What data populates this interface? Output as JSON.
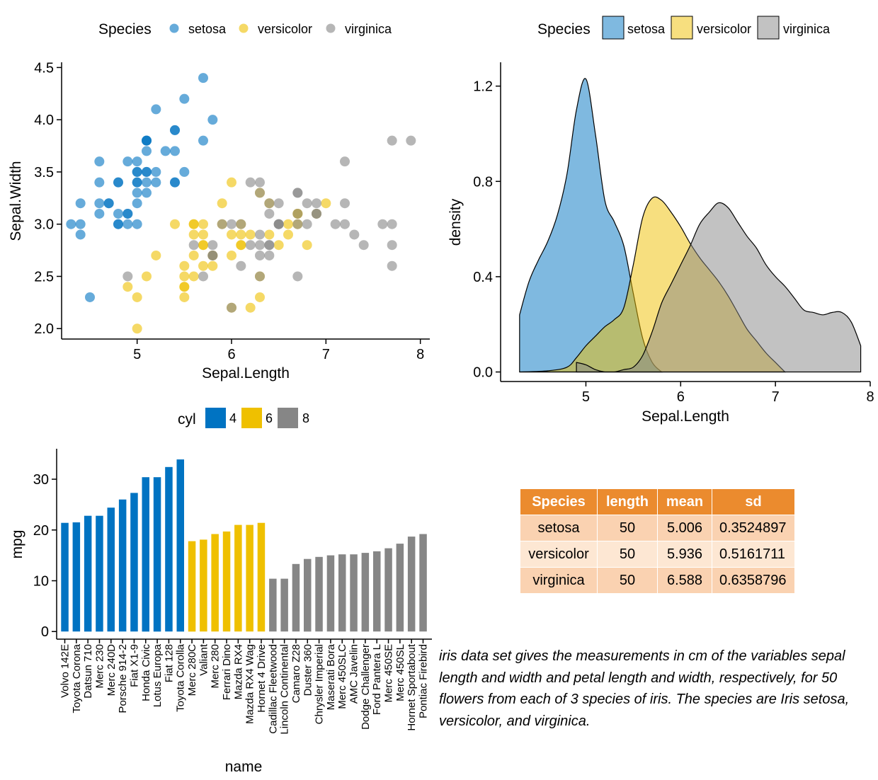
{
  "colors": {
    "setosa": "#0073C2",
    "versicolor": "#EFC000",
    "virginica": "#868686",
    "cyl4": "#0073C2",
    "cyl6": "#EFC000",
    "cyl8": "#868686",
    "table_header": "#EB8B2E",
    "table_row_odd": "#FAD2B1",
    "table_row_even": "#FDE7D3"
  },
  "chart_data": [
    {
      "type": "scatter",
      "xlabel": "Sepal.Length",
      "ylabel": "Sepal.Width",
      "xlim": [
        4.2,
        8.1
      ],
      "ylim": [
        1.9,
        4.55
      ],
      "xticks": [
        5,
        6,
        7,
        8
      ],
      "yticks": [
        2.0,
        2.5,
        3.0,
        3.5,
        4.0,
        4.5
      ],
      "ytick_labels": [
        "2.0",
        "2.5",
        "3.0",
        "3.5",
        "4.0",
        "4.5"
      ],
      "legend": {
        "title": "Species",
        "position": "top",
        "entries": [
          "setosa",
          "versicolor",
          "virginica"
        ]
      },
      "series": [
        {
          "name": "setosa",
          "points": [
            [
              5.1,
              3.5
            ],
            [
              4.9,
              3.0
            ],
            [
              4.7,
              3.2
            ],
            [
              4.6,
              3.1
            ],
            [
              5.0,
              3.6
            ],
            [
              5.4,
              3.9
            ],
            [
              4.6,
              3.4
            ],
            [
              5.0,
              3.4
            ],
            [
              4.4,
              2.9
            ],
            [
              4.9,
              3.1
            ],
            [
              5.4,
              3.7
            ],
            [
              4.8,
              3.4
            ],
            [
              4.8,
              3.0
            ],
            [
              4.3,
              3.0
            ],
            [
              5.8,
              4.0
            ],
            [
              5.7,
              4.4
            ],
            [
              5.4,
              3.9
            ],
            [
              5.1,
              3.5
            ],
            [
              5.7,
              3.8
            ],
            [
              5.1,
              3.8
            ],
            [
              5.4,
              3.4
            ],
            [
              5.1,
              3.7
            ],
            [
              4.6,
              3.6
            ],
            [
              5.1,
              3.3
            ],
            [
              4.8,
              3.4
            ],
            [
              5.0,
              3.0
            ],
            [
              5.0,
              3.4
            ],
            [
              5.2,
              3.5
            ],
            [
              5.2,
              3.4
            ],
            [
              4.7,
              3.2
            ],
            [
              4.8,
              3.1
            ],
            [
              5.4,
              3.4
            ],
            [
              5.2,
              4.1
            ],
            [
              5.5,
              4.2
            ],
            [
              4.9,
              3.1
            ],
            [
              5.0,
              3.2
            ],
            [
              5.5,
              3.5
            ],
            [
              4.9,
              3.6
            ],
            [
              4.4,
              3.0
            ],
            [
              5.1,
              3.4
            ],
            [
              5.0,
              3.5
            ],
            [
              4.5,
              2.3
            ],
            [
              4.4,
              3.2
            ],
            [
              5.0,
              3.5
            ],
            [
              5.1,
              3.8
            ],
            [
              4.8,
              3.0
            ],
            [
              5.1,
              3.8
            ],
            [
              4.6,
              3.2
            ],
            [
              5.3,
              3.7
            ],
            [
              5.0,
              3.3
            ]
          ]
        },
        {
          "name": "versicolor",
          "points": [
            [
              7.0,
              3.2
            ],
            [
              6.4,
              3.2
            ],
            [
              6.9,
              3.1
            ],
            [
              5.5,
              2.3
            ],
            [
              6.5,
              2.8
            ],
            [
              5.7,
              2.8
            ],
            [
              6.3,
              3.3
            ],
            [
              4.9,
              2.4
            ],
            [
              6.6,
              2.9
            ],
            [
              5.2,
              2.7
            ],
            [
              5.0,
              2.0
            ],
            [
              5.9,
              3.0
            ],
            [
              6.0,
              2.2
            ],
            [
              6.1,
              2.9
            ],
            [
              5.6,
              2.9
            ],
            [
              6.7,
              3.1
            ],
            [
              5.6,
              3.0
            ],
            [
              5.8,
              2.7
            ],
            [
              6.2,
              2.2
            ],
            [
              5.6,
              2.5
            ],
            [
              5.9,
              3.2
            ],
            [
              6.1,
              2.8
            ],
            [
              6.3,
              2.5
            ],
            [
              6.1,
              2.8
            ],
            [
              6.4,
              2.9
            ],
            [
              6.6,
              3.0
            ],
            [
              6.8,
              2.8
            ],
            [
              6.7,
              3.0
            ],
            [
              6.0,
              2.9
            ],
            [
              5.7,
              2.6
            ],
            [
              5.5,
              2.4
            ],
            [
              5.5,
              2.4
            ],
            [
              5.8,
              2.7
            ],
            [
              6.0,
              2.7
            ],
            [
              5.4,
              3.0
            ],
            [
              6.0,
              3.4
            ],
            [
              6.7,
              3.1
            ],
            [
              6.3,
              2.3
            ],
            [
              5.6,
              3.0
            ],
            [
              5.5,
              2.5
            ],
            [
              5.5,
              2.6
            ],
            [
              6.1,
              3.0
            ],
            [
              5.8,
              2.6
            ],
            [
              5.0,
              2.3
            ],
            [
              5.6,
              2.7
            ],
            [
              5.7,
              3.0
            ],
            [
              5.7,
              2.9
            ],
            [
              6.2,
              2.9
            ],
            [
              5.1,
              2.5
            ],
            [
              5.7,
              2.8
            ]
          ]
        },
        {
          "name": "virginica",
          "points": [
            [
              6.3,
              3.3
            ],
            [
              5.8,
              2.7
            ],
            [
              7.1,
              3.0
            ],
            [
              6.3,
              2.9
            ],
            [
              6.5,
              3.0
            ],
            [
              7.6,
              3.0
            ],
            [
              4.9,
              2.5
            ],
            [
              7.3,
              2.9
            ],
            [
              6.7,
              2.5
            ],
            [
              7.2,
              3.6
            ],
            [
              6.5,
              3.2
            ],
            [
              6.4,
              2.7
            ],
            [
              6.8,
              3.0
            ],
            [
              5.7,
              2.5
            ],
            [
              5.8,
              2.8
            ],
            [
              6.4,
              3.2
            ],
            [
              6.5,
              3.0
            ],
            [
              7.7,
              3.8
            ],
            [
              7.7,
              2.6
            ],
            [
              6.0,
              2.2
            ],
            [
              6.9,
              3.2
            ],
            [
              5.6,
              2.8
            ],
            [
              7.7,
              2.8
            ],
            [
              6.3,
              2.7
            ],
            [
              6.7,
              3.3
            ],
            [
              7.2,
              3.2
            ],
            [
              6.2,
              2.8
            ],
            [
              6.1,
              3.0
            ],
            [
              6.4,
              2.8
            ],
            [
              7.2,
              3.0
            ],
            [
              7.4,
              2.8
            ],
            [
              7.9,
              3.8
            ],
            [
              6.4,
              2.8
            ],
            [
              6.3,
              2.8
            ],
            [
              6.1,
              2.6
            ],
            [
              7.7,
              3.0
            ],
            [
              6.3,
              3.4
            ],
            [
              6.4,
              3.1
            ],
            [
              6.0,
              3.0
            ],
            [
              6.9,
              3.1
            ],
            [
              6.7,
              3.1
            ],
            [
              6.9,
              3.1
            ],
            [
              5.8,
              2.7
            ],
            [
              6.8,
              3.2
            ],
            [
              6.7,
              3.3
            ],
            [
              6.7,
              3.0
            ],
            [
              6.3,
              2.5
            ],
            [
              6.5,
              3.0
            ],
            [
              6.2,
              3.4
            ],
            [
              5.9,
              3.0
            ]
          ]
        }
      ]
    },
    {
      "type": "area",
      "xlabel": "Sepal.Length",
      "ylabel": "density",
      "xlim": [
        4.1,
        8.0
      ],
      "ylim": [
        -0.04,
        1.3
      ],
      "xticks": [
        5,
        6,
        7,
        8
      ],
      "yticks": [
        0.0,
        0.4,
        0.8,
        1.2
      ],
      "ytick_labels": [
        "0.0",
        "0.4",
        "0.8",
        "1.2"
      ],
      "legend": {
        "title": "Species",
        "position": "top",
        "entries": [
          "setosa",
          "versicolor",
          "virginica"
        ]
      },
      "series": [
        {
          "name": "setosa",
          "x": [
            4.3,
            4.4,
            4.5,
            4.6,
            4.7,
            4.8,
            4.9,
            5.0,
            5.1,
            5.2,
            5.3,
            5.4,
            5.5,
            5.6,
            5.7,
            5.8
          ],
          "y": [
            0.24,
            0.38,
            0.47,
            0.55,
            0.66,
            0.83,
            1.1,
            1.23,
            1.0,
            0.72,
            0.63,
            0.53,
            0.33,
            0.14,
            0.04,
            0.0
          ]
        },
        {
          "name": "versicolor",
          "x": [
            4.3,
            4.6,
            4.8,
            4.9,
            5.0,
            5.1,
            5.2,
            5.3,
            5.4,
            5.5,
            5.6,
            5.7,
            5.8,
            5.9,
            6.0,
            6.1,
            6.2,
            6.3,
            6.4,
            6.5,
            6.6,
            6.7,
            6.8,
            6.9,
            7.0,
            7.1
          ],
          "y": [
            0.0,
            0.005,
            0.02,
            0.06,
            0.11,
            0.15,
            0.19,
            0.22,
            0.27,
            0.45,
            0.65,
            0.73,
            0.72,
            0.67,
            0.61,
            0.54,
            0.48,
            0.43,
            0.38,
            0.32,
            0.25,
            0.18,
            0.13,
            0.08,
            0.04,
            0.0
          ]
        },
        {
          "name": "virginica",
          "x": [
            4.9,
            5.0,
            5.1,
            5.2,
            5.3,
            5.4,
            5.5,
            5.6,
            5.7,
            5.8,
            5.9,
            6.0,
            6.1,
            6.2,
            6.3,
            6.4,
            6.5,
            6.6,
            6.7,
            6.8,
            6.9,
            7.0,
            7.1,
            7.2,
            7.3,
            7.4,
            7.5,
            7.6,
            7.7,
            7.8,
            7.9
          ],
          "y": [
            0.04,
            0.03,
            0.01,
            0.0,
            0.0,
            0.01,
            0.02,
            0.07,
            0.17,
            0.29,
            0.37,
            0.45,
            0.53,
            0.62,
            0.67,
            0.71,
            0.69,
            0.63,
            0.57,
            0.52,
            0.45,
            0.4,
            0.36,
            0.31,
            0.26,
            0.25,
            0.24,
            0.25,
            0.25,
            0.21,
            0.11
          ]
        }
      ]
    },
    {
      "type": "bar",
      "xlabel": "name",
      "ylabel": "mpg",
      "ylim": [
        -1.5,
        36
      ],
      "yticks": [
        0,
        10,
        20,
        30
      ],
      "legend": {
        "title": "cyl",
        "position": "top",
        "entries": [
          "4",
          "6",
          "8"
        ]
      },
      "categories": [
        "Volvo 142E",
        "Toyota Corona",
        "Datsun 710",
        "Merc 230",
        "Merc 240D",
        "Porsche 914-2",
        "Fiat X1-9",
        "Honda Civic",
        "Lotus Europa",
        "Fiat 128",
        "Toyota Corolla",
        "Merc 280C",
        "Valiant",
        "Merc 280",
        "Ferrari Dino",
        "Mazda RX4",
        "Mazda RX4 Wag",
        "Hornet 4 Drive",
        "Cadillac Fleetwood",
        "Lincoln Continental",
        "Camaro Z28",
        "Duster 360",
        "Chrysler Imperial",
        "Maserati Bora",
        "Merc 450SLC",
        "AMC Javelin",
        "Dodge Challenger",
        "Ford Pantera L",
        "Merc 450SE",
        "Merc 450SL",
        "Hornet Sportabout",
        "Pontiac Firebird"
      ],
      "values": [
        21.4,
        21.5,
        22.8,
        22.8,
        24.4,
        26.0,
        27.3,
        30.4,
        30.4,
        32.4,
        33.9,
        17.8,
        18.1,
        19.2,
        19.7,
        21.0,
        21.0,
        21.4,
        10.4,
        10.4,
        13.3,
        14.3,
        14.7,
        15.0,
        15.2,
        15.2,
        15.5,
        15.8,
        16.4,
        17.3,
        18.7,
        19.2
      ],
      "groups": [
        "4",
        "4",
        "4",
        "4",
        "4",
        "4",
        "4",
        "4",
        "4",
        "4",
        "4",
        "6",
        "6",
        "6",
        "6",
        "6",
        "6",
        "6",
        "8",
        "8",
        "8",
        "8",
        "8",
        "8",
        "8",
        "8",
        "8",
        "8",
        "8",
        "8",
        "8",
        "8"
      ]
    },
    {
      "type": "table",
      "columns": [
        "Species",
        "length",
        "mean",
        "sd"
      ],
      "rows": [
        [
          "setosa",
          "50",
          "5.006",
          "0.3524897"
        ],
        [
          "versicolor",
          "50",
          "5.936",
          "0.5161711"
        ],
        [
          "virginica",
          "50",
          "6.588",
          "0.6358796"
        ]
      ]
    }
  ],
  "caption": "iris data set gives the measurements in cm of the variables sepal length and width and petal length and width, respectively, for 50 flowers from each of 3 species of iris. The species are Iris setosa, versicolor, and virginica."
}
